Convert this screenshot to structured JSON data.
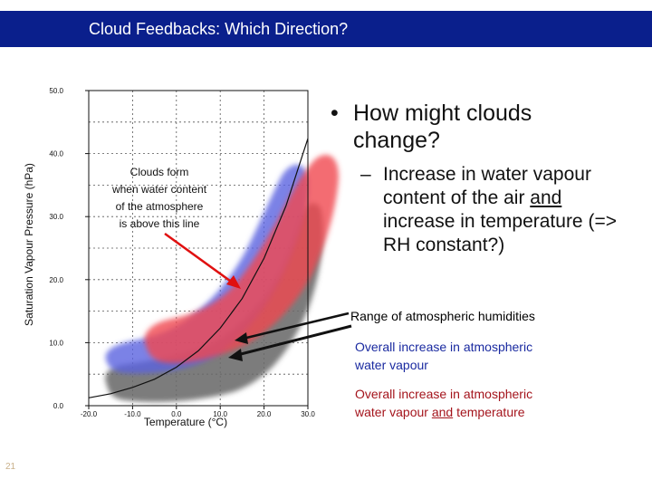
{
  "title": "Cloud Feedbacks: Which Direction?",
  "bullets": {
    "main": "How might clouds change?",
    "bullet_symbol": "•",
    "sub_dash": "–",
    "sub_part1": "Increase in water vapour content of the air ",
    "sub_and": "and",
    "sub_part2": " increase in temperature (=> RH constant?)"
  },
  "annotations": {
    "range": "Range of atmospheric humidities",
    "blue_line1": "Overall increase in atmospheric",
    "blue_line2": "water vapour",
    "red_line1": "Overall increase in atmospheric",
    "red_line2_pre": "water vapour ",
    "red_line2_and": "and",
    "red_line2_post": " temperature",
    "clouds_form": [
      "Clouds form",
      "when water content",
      "of the atmosphere",
      "is above this line"
    ]
  },
  "colors": {
    "title_bar": "#0a1f8c",
    "blue_region": "#5a62e0",
    "red_region": "#f04850",
    "grey_region": "#6a6a6a",
    "red_arrow": "#e01010",
    "blue_text": "#1a2aa0",
    "red_text": "#a4141c"
  },
  "chart_data": {
    "type": "line",
    "xlabel": "Temperature (°C)",
    "ylabel": "Saturation Vapour Pressure (hPa)",
    "xlim": [
      -20,
      30
    ],
    "ylim": [
      0,
      50
    ],
    "x_ticks": [
      "-20.0",
      "-10.0",
      "0.0",
      "10.0",
      "20.0",
      "30.0"
    ],
    "y_ticks": [
      "0.0",
      "10.0",
      "20.0",
      "30.0",
      "40.0",
      "50.0"
    ],
    "grid": true,
    "series": [
      {
        "kind": "curve",
        "x": [
          -20,
          -15,
          -10,
          -5,
          0,
          5,
          10,
          15,
          20,
          25,
          30
        ],
        "y": [
          1.25,
          1.9,
          2.9,
          4.2,
          6.1,
          8.7,
          12.3,
          17.0,
          23.4,
          31.7,
          42.4
        ]
      }
    ]
  },
  "slide_number": "21"
}
